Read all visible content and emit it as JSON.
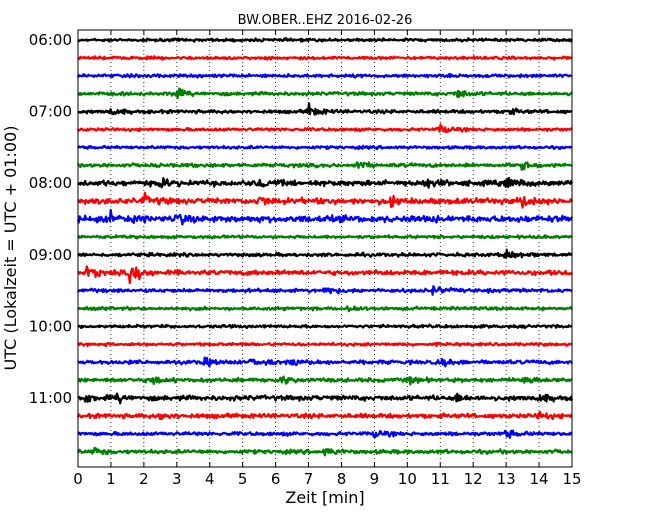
{
  "chart_data": {
    "type": "line",
    "title": "BW.OBER..EHZ 2016-02-26",
    "xlabel": "Zeit  [min]",
    "ylabel": "UTC (Lokalzeit = UTC + 01:00)",
    "xlim": [
      0,
      15
    ],
    "x_ticks": [
      "0",
      "1",
      "2",
      "3",
      "4",
      "5",
      "6",
      "7",
      "8",
      "9",
      "10",
      "11",
      "12",
      "13",
      "14",
      "15"
    ],
    "y_time_ticks": [
      "06:00",
      "07:00",
      "08:00",
      "09:00",
      "10:00",
      "11:00"
    ],
    "row_interval_minutes": 15,
    "first_row": "06:00",
    "grid": "vertical dotted",
    "colors": [
      "#000000",
      "#ff0000",
      "#0000ff",
      "#008000"
    ],
    "series": [
      {
        "start": "06:00",
        "color": "#000000",
        "amplitude": 0.12,
        "events": []
      },
      {
        "start": "06:15",
        "color": "#ff0000",
        "amplitude": 0.12,
        "events": []
      },
      {
        "start": "06:30",
        "color": "#0000ff",
        "amplitude": 0.13,
        "events": []
      },
      {
        "start": "06:45",
        "color": "#008000",
        "amplitude": 0.14,
        "events": [
          [
            2.9,
            0.55
          ],
          [
            11.5,
            0.45
          ]
        ]
      },
      {
        "start": "07:00",
        "color": "#000000",
        "amplitude": 0.14,
        "events": [
          [
            1.0,
            0.3
          ],
          [
            7.0,
            0.55
          ],
          [
            13.0,
            0.3
          ]
        ]
      },
      {
        "start": "07:15",
        "color": "#ff0000",
        "amplitude": 0.12,
        "events": [
          [
            11.0,
            0.45
          ]
        ]
      },
      {
        "start": "07:30",
        "color": "#0000ff",
        "amplitude": 0.12,
        "events": []
      },
      {
        "start": "07:45",
        "color": "#008000",
        "amplitude": 0.15,
        "events": [
          [
            8.5,
            0.3
          ],
          [
            13.5,
            0.35
          ]
        ]
      },
      {
        "start": "08:00",
        "color": "#000000",
        "amplitude": 0.22,
        "events": [
          [
            2.5,
            0.4
          ],
          [
            5.5,
            0.35
          ],
          [
            10.5,
            0.4
          ],
          [
            13.0,
            0.45
          ]
        ]
      },
      {
        "start": "08:15",
        "color": "#ff0000",
        "amplitude": 0.24,
        "events": [
          [
            2.0,
            0.4
          ],
          [
            5.5,
            0.35
          ],
          [
            9.5,
            0.3
          ],
          [
            13.5,
            0.45
          ]
        ]
      },
      {
        "start": "08:30",
        "color": "#0000ff",
        "amplitude": 0.27,
        "events": [
          [
            1.0,
            0.4
          ],
          [
            3.0,
            0.4
          ]
        ]
      },
      {
        "start": "08:45",
        "color": "#008000",
        "amplitude": 0.12,
        "events": []
      },
      {
        "start": "09:00",
        "color": "#000000",
        "amplitude": 0.14,
        "events": [
          [
            13.0,
            0.55
          ]
        ]
      },
      {
        "start": "09:15",
        "color": "#ff0000",
        "amplitude": 0.2,
        "events": [
          [
            0.3,
            0.45
          ],
          [
            1.6,
            1.0
          ]
        ]
      },
      {
        "start": "09:30",
        "color": "#0000ff",
        "amplitude": 0.15,
        "events": [
          [
            7.5,
            0.35
          ],
          [
            10.8,
            0.35
          ]
        ]
      },
      {
        "start": "09:45",
        "color": "#008000",
        "amplitude": 0.13,
        "events": [
          [
            8.2,
            0.3
          ]
        ]
      },
      {
        "start": "10:00",
        "color": "#000000",
        "amplitude": 0.12,
        "events": []
      },
      {
        "start": "10:15",
        "color": "#ff0000",
        "amplitude": 0.12,
        "events": []
      },
      {
        "start": "10:30",
        "color": "#0000ff",
        "amplitude": 0.16,
        "events": [
          [
            3.8,
            0.3
          ],
          [
            5.3,
            0.35
          ],
          [
            6.5,
            0.3
          ],
          [
            11.0,
            0.3
          ]
        ]
      },
      {
        "start": "10:45",
        "color": "#008000",
        "amplitude": 0.16,
        "events": [
          [
            2.2,
            0.3
          ],
          [
            6.2,
            0.3
          ],
          [
            10.0,
            0.3
          ],
          [
            13.5,
            0.4
          ]
        ]
      },
      {
        "start": "11:00",
        "color": "#000000",
        "amplitude": 0.2,
        "events": [
          [
            0.2,
            0.35
          ],
          [
            1.2,
            0.3
          ],
          [
            11.5,
            0.3
          ],
          [
            14.0,
            0.3
          ]
        ]
      },
      {
        "start": "11:15",
        "color": "#ff0000",
        "amplitude": 0.18,
        "events": [
          [
            2.5,
            0.3
          ],
          [
            14.0,
            0.3
          ]
        ]
      },
      {
        "start": "11:30",
        "color": "#0000ff",
        "amplitude": 0.15,
        "events": [
          [
            9.0,
            0.3
          ],
          [
            13.0,
            0.3
          ]
        ]
      },
      {
        "start": "11:45",
        "color": "#008000",
        "amplitude": 0.16,
        "events": [
          [
            0.5,
            0.3
          ],
          [
            7.5,
            0.3
          ]
        ]
      }
    ]
  }
}
